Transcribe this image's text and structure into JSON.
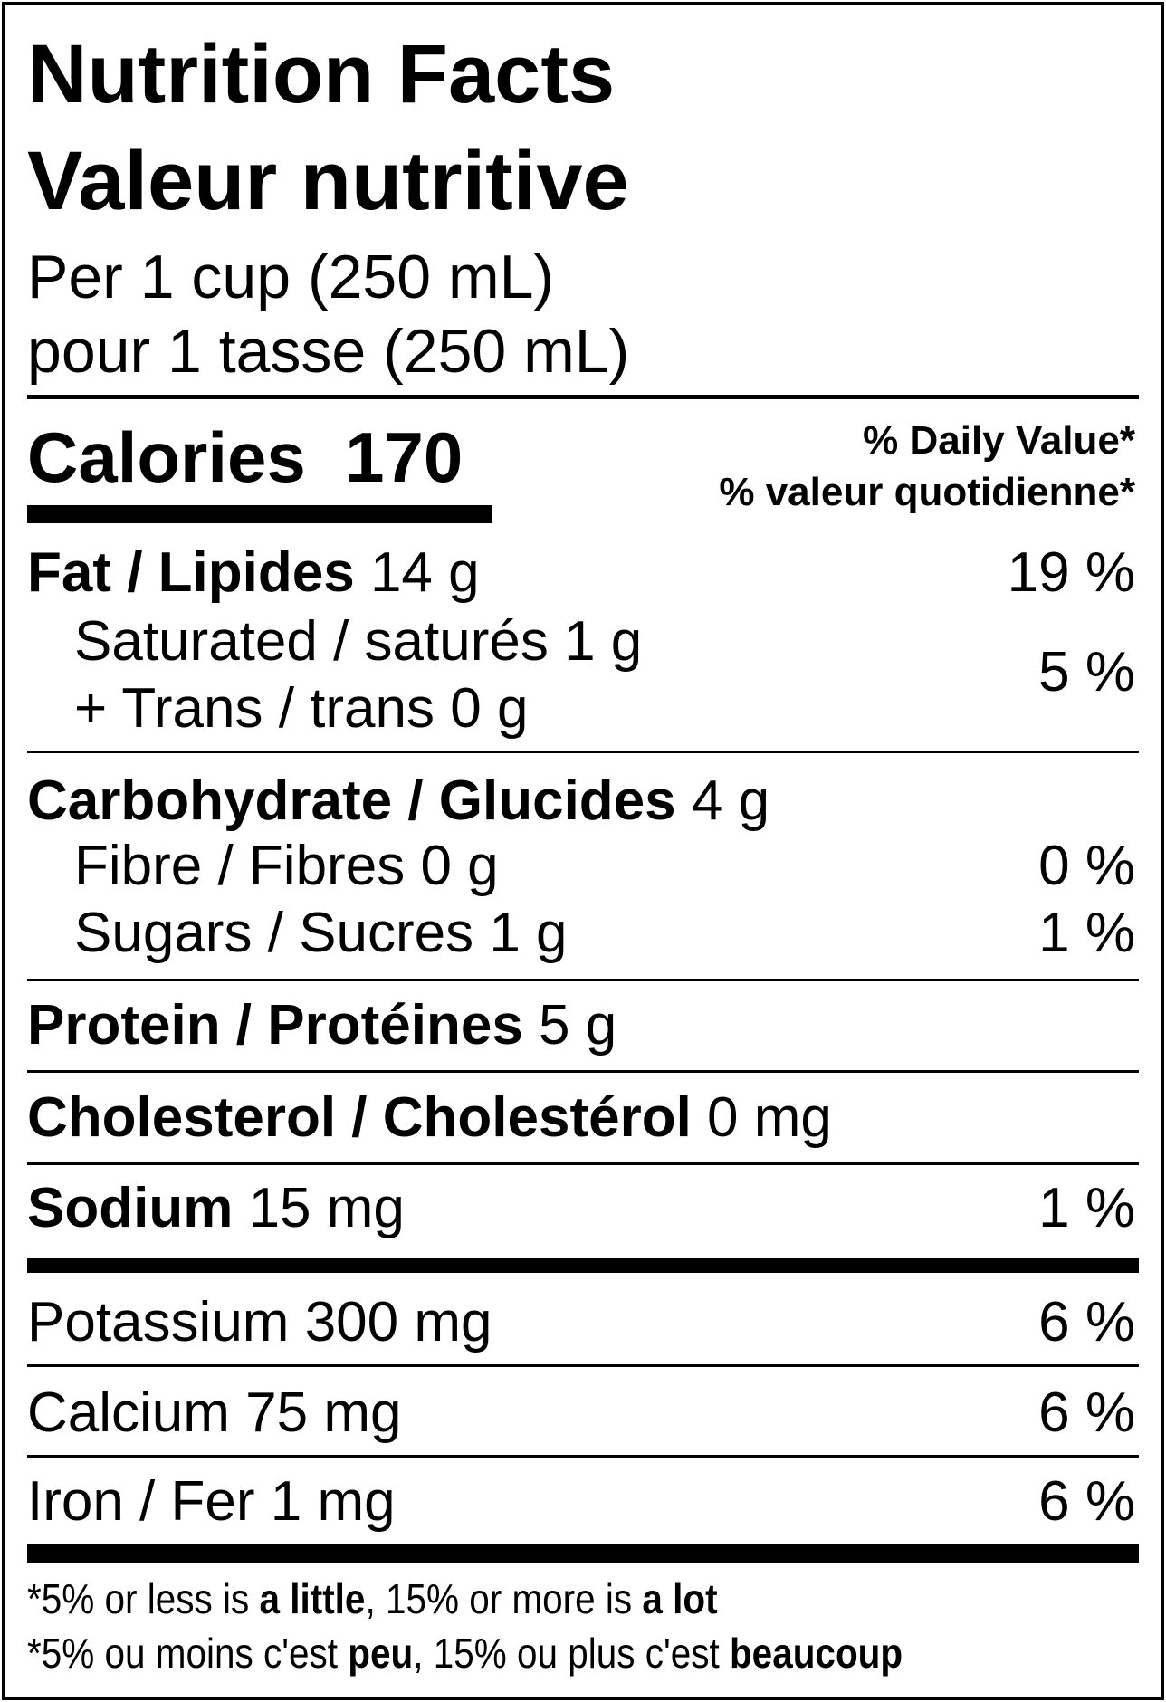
{
  "title_en": "Nutrition Facts",
  "title_fr": "Valeur nutritive",
  "serving_en": "Per 1 cup (250 mL)",
  "serving_fr": "pour 1 tasse (250 mL)",
  "calories_label": "Calories",
  "calories_value": "170",
  "dv_en": "% Daily Value*",
  "dv_fr": "% valeur quotidienne*",
  "fat": {
    "label": "Fat / Lipides",
    "amount": "14 g",
    "dv": "19 %"
  },
  "saturated": {
    "label": "Saturated / saturés",
    "amount": "1 g"
  },
  "trans": {
    "label": "+ Trans / trans",
    "amount": "0 g"
  },
  "sat_trans_dv": "5 %",
  "carbohydrate": {
    "label": "Carbohydrate / Glucides",
    "amount": "4 g"
  },
  "fibre": {
    "label": "Fibre / Fibres",
    "amount": "0 g",
    "dv": "0 %"
  },
  "sugars": {
    "label": "Sugars / Sucres",
    "amount": "1 g",
    "dv": "1 %"
  },
  "protein": {
    "label": "Protein / Protéines",
    "amount": "5 g"
  },
  "cholesterol": {
    "label": "Cholesterol / Cholestérol",
    "amount": "0 mg"
  },
  "sodium": {
    "label": "Sodium",
    "amount": "15 mg",
    "dv": "1 %"
  },
  "potassium": {
    "label": "Potassium",
    "amount": "300 mg",
    "dv": "6 %"
  },
  "calcium": {
    "label": "Calcium",
    "amount": "75 mg",
    "dv": "6 %"
  },
  "iron": {
    "label": "Iron / Fer",
    "amount": "1 mg",
    "dv": "6 %"
  },
  "footnote_en": {
    "a": "*5% or less is ",
    "b": "a little",
    "c": ", 15% or more is ",
    "d": "a lot"
  },
  "footnote_fr": {
    "a": "*5% ou moins c'est ",
    "b": "peu",
    "c": ", 15% ou plus c'est ",
    "d": "beaucoup"
  }
}
